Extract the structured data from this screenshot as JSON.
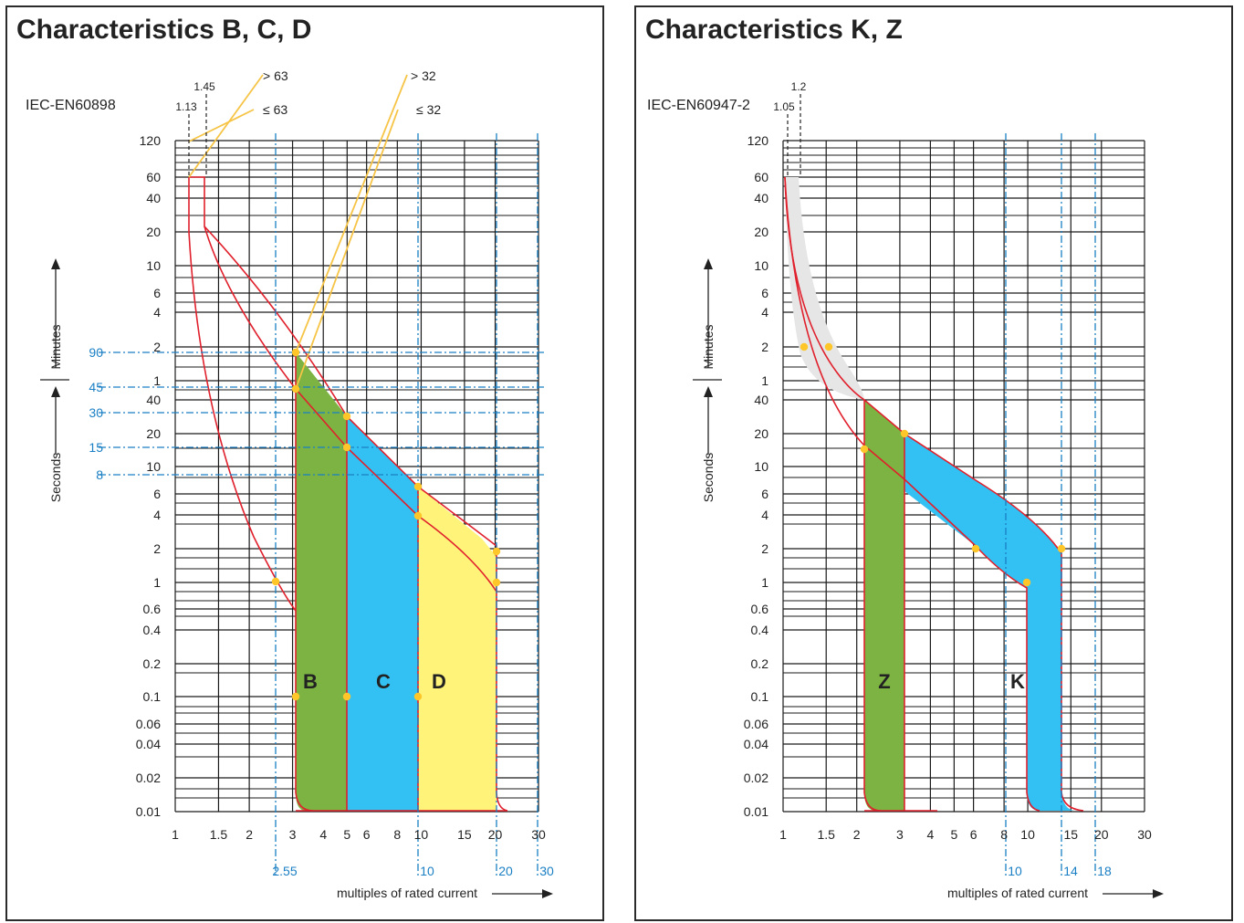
{
  "colors": {
    "grid": "#1a1a1a",
    "curve": "#e0202c",
    "yellow_line": "#f6c446",
    "blue": "#1a7fc4",
    "fill_green": "#7cb342",
    "fill_blue": "#33c0f2",
    "fill_yellow": "#fff37a",
    "fill_grey": "#e6e6e6",
    "dot": "#ffc629"
  },
  "chart_data": [
    {
      "type": "line",
      "title": "Characteristics B, C, D",
      "standard": "IEC-EN60898",
      "xlabel": "multiples of rated current",
      "xscale": "log",
      "xlim": [
        1,
        30
      ],
      "x_ticks": [
        "1",
        "1.5",
        "2",
        "3",
        "4",
        "5",
        "6",
        "8",
        "10",
        "15",
        "20",
        "30"
      ],
      "x_markers": [
        "2.55",
        "10",
        "20",
        "30"
      ],
      "y_axis_label_upper": "Minutes",
      "y_axis_label_lower": "Seconds",
      "y_ticks_minutes": [
        "120",
        "60",
        "40",
        "20",
        "10",
        "6",
        "4",
        "2",
        "1"
      ],
      "y_ticks_seconds": [
        "40",
        "20",
        "10",
        "6",
        "4",
        "2",
        "1",
        "0.6",
        "0.4",
        "0.2",
        "0.1",
        "0.06",
        "0.04",
        "0.02",
        "0.01"
      ],
      "y_markers_seconds": [
        "90",
        "45",
        "30",
        "15",
        "8"
      ],
      "top_markers": [
        "1.13",
        "1.45"
      ],
      "current_labels": [
        "> 63",
        "≤ 63",
        "> 32",
        "≤ 32"
      ],
      "region_labels": [
        "B",
        "C",
        "D"
      ]
    },
    {
      "type": "line",
      "title": "Characteristics K, Z",
      "standard": "IEC-EN60947-2",
      "xlabel": "multiples of rated current",
      "xscale": "log",
      "xlim": [
        1,
        30
      ],
      "x_ticks": [
        "1",
        "1.5",
        "2",
        "3",
        "4",
        "5",
        "6",
        "8",
        "10",
        "15",
        "20",
        "30"
      ],
      "x_markers": [
        "10",
        "14",
        "18"
      ],
      "y_axis_label_upper": "Minutes",
      "y_axis_label_lower": "Seconds",
      "y_ticks_minutes": [
        "120",
        "60",
        "40",
        "20",
        "10",
        "6",
        "4",
        "2",
        "1"
      ],
      "y_ticks_seconds": [
        "40",
        "20",
        "10",
        "6",
        "4",
        "2",
        "1",
        "0.6",
        "0.4",
        "0.2",
        "0.1",
        "0.06",
        "0.04",
        "0.02",
        "0.01"
      ],
      "top_markers": [
        "1.05",
        "1.2"
      ],
      "region_labels": [
        "Z",
        "K"
      ]
    }
  ]
}
